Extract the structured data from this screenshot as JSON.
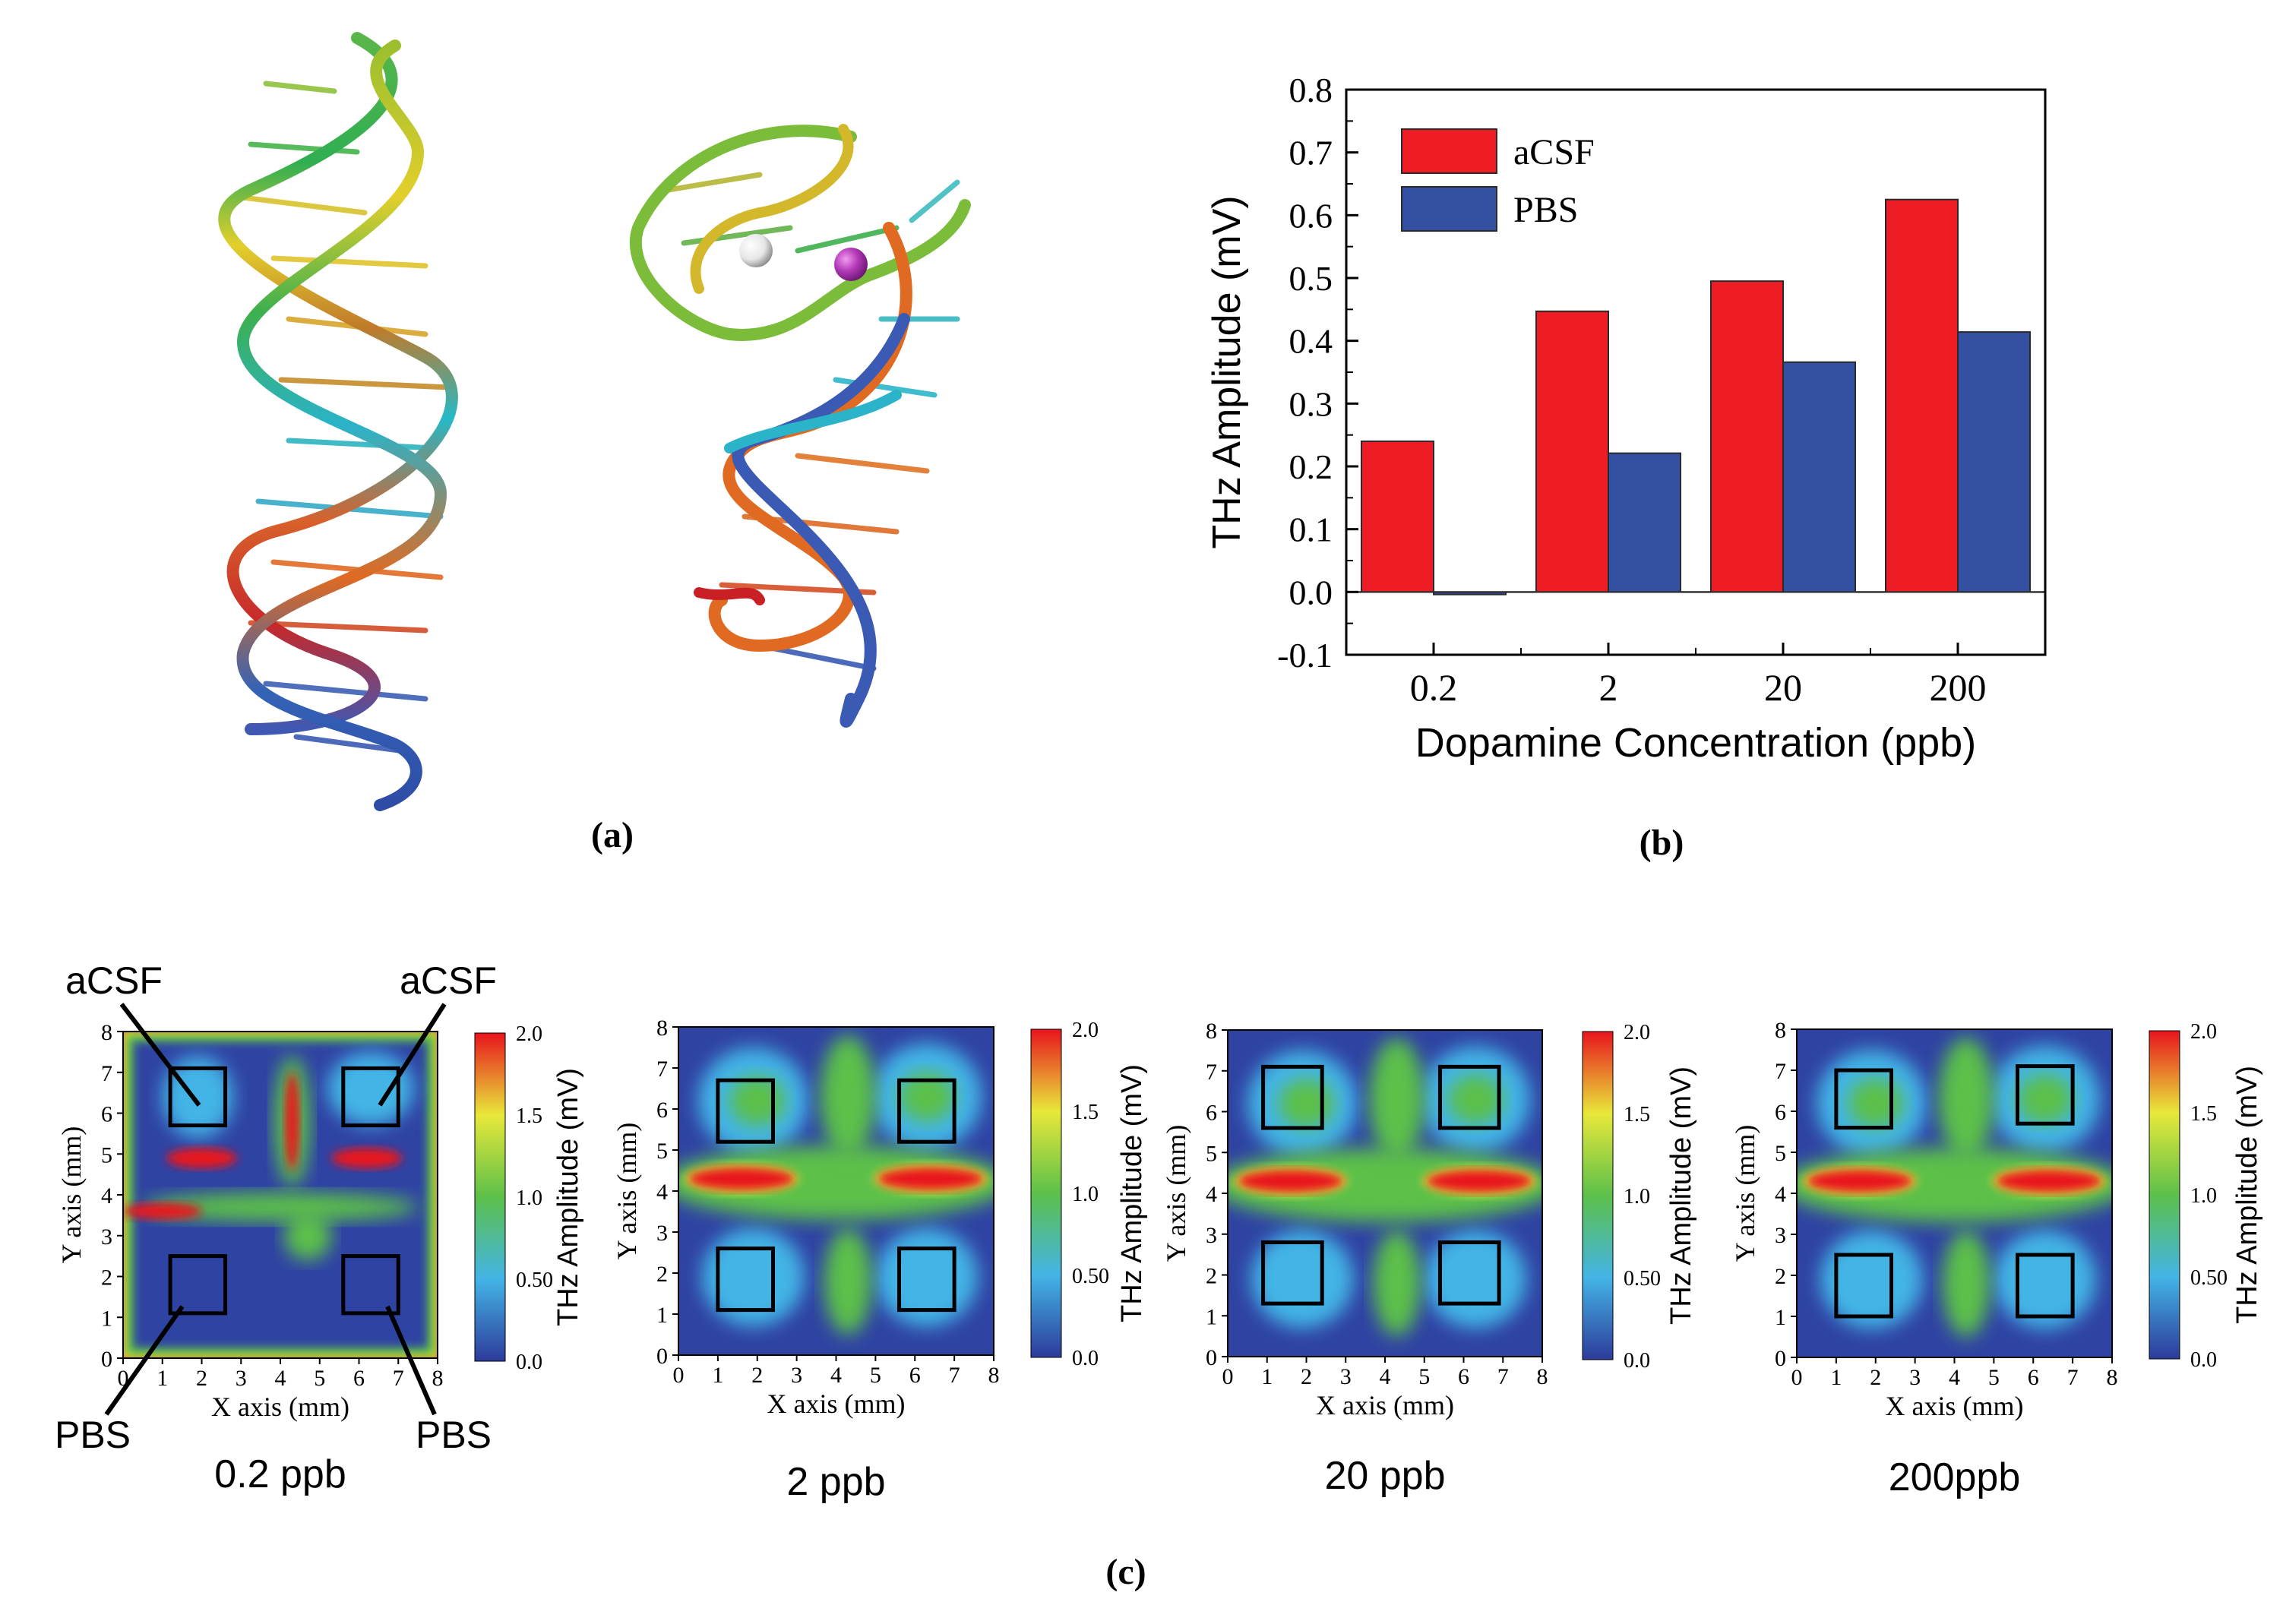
{
  "panels": {
    "a": {
      "label": "(a)"
    },
    "b": {
      "label": "(b)"
    },
    "c": {
      "label": "(c)"
    }
  },
  "colors": {
    "acsf": "#ee1c25",
    "pbs": "#3450a3",
    "bar_stroke": "#2a2a2a"
  },
  "chart_data": [
    {
      "type": "bar",
      "panel": "b",
      "title": "",
      "xlabel": "Dopamine Concentration (ppb)",
      "ylabel": "THz Amplitude (mV)",
      "categories": [
        "0.2",
        "2",
        "20",
        "200"
      ],
      "series": [
        {
          "name": "aCSF",
          "values": [
            0.24,
            0.447,
            0.495,
            0.625
          ]
        },
        {
          "name": "PBS",
          "values": [
            -0.004,
            0.221,
            0.366,
            0.414
          ]
        }
      ],
      "ylim": [
        -0.1,
        0.8
      ],
      "yticks": [
        "-0.1",
        "0.0",
        "0.1",
        "0.2",
        "0.3",
        "0.4",
        "0.5",
        "0.6",
        "0.7",
        "0.8"
      ],
      "legend": "top-left",
      "grid": false
    },
    {
      "type": "heatmap",
      "panel": "c",
      "xlabel": "X axis (mm)",
      "ylabel": "Y axis (mm)",
      "colorbar_label": "THz Amplitude (mV)",
      "colorbar_ticks": [
        "2.0",
        "1.5",
        "1.0",
        "0.50",
        "0.0"
      ],
      "colorbar_range": [
        0.0,
        2.0
      ],
      "xticks": [
        "0",
        "1",
        "2",
        "3",
        "4",
        "5",
        "6",
        "7",
        "8"
      ],
      "yticks": [
        "0",
        "1",
        "2",
        "3",
        "4",
        "5",
        "6",
        "7",
        "8"
      ],
      "xlim": [
        0,
        8
      ],
      "ylim": [
        0,
        8
      ],
      "maps": [
        {
          "caption": "0.2 ppb",
          "boxes": [
            [
              1.2,
              5.7,
              2.6,
              7.1
            ],
            [
              5.6,
              5.7,
              7.0,
              7.1
            ],
            [
              1.2,
              1.1,
              2.6,
              2.5
            ],
            [
              5.6,
              1.1,
              7.0,
              2.5
            ]
          ]
        },
        {
          "caption": "2 ppb",
          "boxes": [
            [
              1.0,
              5.2,
              2.4,
              6.7
            ],
            [
              5.6,
              5.2,
              7.0,
              6.7
            ],
            [
              1.0,
              1.1,
              2.4,
              2.6
            ],
            [
              5.6,
              1.1,
              7.0,
              2.6
            ]
          ]
        },
        {
          "caption": "20 ppb",
          "boxes": [
            [
              0.9,
              5.6,
              2.4,
              7.1
            ],
            [
              5.4,
              5.6,
              6.9,
              7.1
            ],
            [
              0.9,
              1.3,
              2.4,
              2.8
            ],
            [
              5.4,
              1.3,
              6.9,
              2.8
            ]
          ]
        },
        {
          "caption": "200ppb",
          "boxes": [
            [
              1.0,
              5.6,
              2.4,
              7.0
            ],
            [
              5.6,
              5.7,
              7.0,
              7.1
            ],
            [
              1.0,
              1.0,
              2.4,
              2.5
            ],
            [
              5.6,
              1.0,
              7.0,
              2.5
            ]
          ]
        }
      ],
      "annotations": {
        "top_left": "aCSF",
        "top_right": "aCSF",
        "bottom_left": "PBS",
        "bottom_right": "PBS"
      }
    }
  ]
}
